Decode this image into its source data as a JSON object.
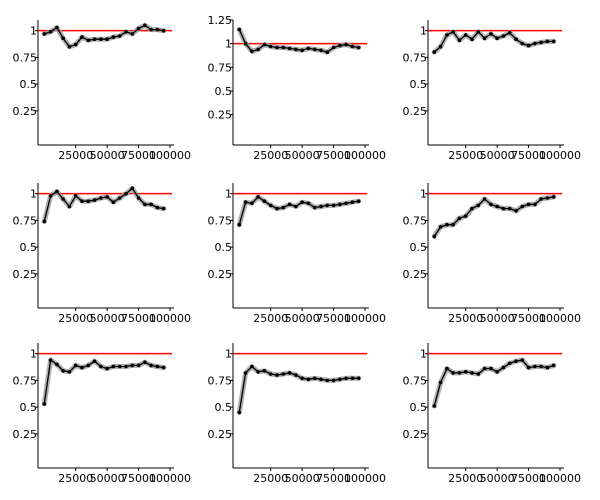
{
  "figure": {
    "reference_line_color": "#ff0000",
    "series_color": "#000000",
    "band_color": "#9a9a9a"
  },
  "chart_data": [
    {
      "type": "line",
      "y_tick_labels": [
        "1",
        "0.75",
        "0.5",
        "0.25"
      ],
      "y_ticks": [
        1,
        0.75,
        0.5,
        0.25
      ],
      "x_tick_labels": [
        "25000",
        "50000",
        "75000",
        "100000"
      ],
      "x_ticks": [
        25000,
        50000,
        75000,
        100000
      ],
      "xlim": [
        -5000,
        100000
      ],
      "ylim": [
        -0.07,
        1.1
      ],
      "reference_line": 1,
      "x": [
        0,
        5000,
        10000,
        15000,
        20000,
        25000,
        30000,
        35000,
        40000,
        45000,
        50000,
        55000,
        60000,
        65000,
        70000,
        75000,
        80000,
        85000,
        90000,
        95000
      ],
      "values": [
        0.97,
        0.99,
        1.03,
        0.93,
        0.85,
        0.87,
        0.94,
        0.91,
        0.92,
        0.92,
        0.92,
        0.94,
        0.95,
        0.99,
        0.97,
        1.02,
        1.05,
        1.01,
        1.01,
        1.0
      ]
    },
    {
      "type": "line",
      "y_tick_labels": [
        "1.25",
        "1",
        "0.75",
        "0.5",
        "0.25"
      ],
      "y_ticks": [
        1.25,
        1,
        0.75,
        0.5,
        0.25
      ],
      "x_tick_labels": [
        "25000",
        "50000",
        "75000",
        "100000"
      ],
      "x_ticks": [
        25000,
        50000,
        75000,
        100000
      ],
      "xlim": [
        -5000,
        100000
      ],
      "ylim": [
        -0.07,
        1.25
      ],
      "reference_line": 1,
      "x": [
        0,
        5000,
        10000,
        15000,
        20000,
        25000,
        30000,
        35000,
        40000,
        45000,
        50000,
        55000,
        60000,
        65000,
        70000,
        75000,
        80000,
        85000,
        90000,
        95000
      ],
      "values": [
        1.15,
        1.0,
        0.92,
        0.94,
        0.99,
        0.97,
        0.96,
        0.96,
        0.95,
        0.94,
        0.93,
        0.95,
        0.94,
        0.93,
        0.91,
        0.96,
        0.98,
        0.99,
        0.97,
        0.96
      ]
    },
    {
      "type": "line",
      "y_tick_labels": [
        "1",
        "0.75",
        "0.5",
        "0.25"
      ],
      "y_ticks": [
        1,
        0.75,
        0.5,
        0.25
      ],
      "x_tick_labels": [
        "25000",
        "50000",
        "75000",
        "100000"
      ],
      "x_ticks": [
        25000,
        50000,
        75000,
        100000
      ],
      "xlim": [
        -5000,
        100000
      ],
      "ylim": [
        -0.07,
        1.1
      ],
      "reference_line": 1,
      "x": [
        0,
        5000,
        10000,
        15000,
        20000,
        25000,
        30000,
        35000,
        40000,
        45000,
        50000,
        55000,
        60000,
        65000,
        70000,
        75000,
        80000,
        85000,
        90000,
        95000
      ],
      "values": [
        0.8,
        0.85,
        0.96,
        0.99,
        0.91,
        0.96,
        0.92,
        0.99,
        0.93,
        0.97,
        0.93,
        0.95,
        0.98,
        0.92,
        0.88,
        0.86,
        0.88,
        0.89,
        0.9,
        0.9
      ]
    },
    {
      "type": "line",
      "y_tick_labels": [
        "1",
        "0.75",
        "0.5",
        "0.25"
      ],
      "y_ticks": [
        1,
        0.75,
        0.5,
        0.25
      ],
      "x_tick_labels": [
        "25000",
        "50000",
        "75000",
        "100000"
      ],
      "x_ticks": [
        25000,
        50000,
        75000,
        100000
      ],
      "xlim": [
        -5000,
        100000
      ],
      "ylim": [
        -0.07,
        1.1
      ],
      "reference_line": 1,
      "x": [
        0,
        5000,
        10000,
        15000,
        20000,
        25000,
        30000,
        35000,
        40000,
        45000,
        50000,
        55000,
        60000,
        65000,
        70000,
        75000,
        80000,
        85000,
        90000,
        95000
      ],
      "values": [
        0.74,
        0.98,
        1.02,
        0.95,
        0.88,
        0.98,
        0.93,
        0.93,
        0.94,
        0.96,
        0.97,
        0.92,
        0.96,
        1.0,
        1.05,
        0.96,
        0.9,
        0.9,
        0.87,
        0.86
      ]
    },
    {
      "type": "line",
      "y_tick_labels": [
        "1",
        "0.75",
        "0.5",
        "0.25"
      ],
      "y_ticks": [
        1,
        0.75,
        0.5,
        0.25
      ],
      "x_tick_labels": [
        "25000",
        "50000",
        "75000",
        "100000"
      ],
      "x_ticks": [
        25000,
        50000,
        75000,
        100000
      ],
      "xlim": [
        -5000,
        100000
      ],
      "ylim": [
        -0.07,
        1.1
      ],
      "reference_line": 1,
      "x": [
        0,
        5000,
        10000,
        15000,
        20000,
        25000,
        30000,
        35000,
        40000,
        45000,
        50000,
        55000,
        60000,
        65000,
        70000,
        75000,
        80000,
        85000,
        90000,
        95000
      ],
      "values": [
        0.71,
        0.92,
        0.91,
        0.97,
        0.93,
        0.89,
        0.86,
        0.87,
        0.9,
        0.88,
        0.92,
        0.91,
        0.87,
        0.88,
        0.89,
        0.89,
        0.9,
        0.91,
        0.92,
        0.93
      ]
    },
    {
      "type": "line",
      "y_tick_labels": [
        "1",
        "0.75",
        "0.5",
        "0.25"
      ],
      "y_ticks": [
        1,
        0.75,
        0.5,
        0.25
      ],
      "x_tick_labels": [
        "25000",
        "50000",
        "75000",
        "100000"
      ],
      "x_ticks": [
        25000,
        50000,
        75000,
        100000
      ],
      "xlim": [
        -5000,
        100000
      ],
      "ylim": [
        -0.07,
        1.1
      ],
      "reference_line": 1,
      "x": [
        0,
        5000,
        10000,
        15000,
        20000,
        25000,
        30000,
        35000,
        40000,
        45000,
        50000,
        55000,
        60000,
        65000,
        70000,
        75000,
        80000,
        85000,
        90000,
        95000
      ],
      "values": [
        0.6,
        0.69,
        0.71,
        0.71,
        0.77,
        0.79,
        0.86,
        0.89,
        0.95,
        0.9,
        0.88,
        0.86,
        0.86,
        0.84,
        0.88,
        0.9,
        0.9,
        0.95,
        0.96,
        0.97
      ]
    },
    {
      "type": "line",
      "y_tick_labels": [
        "1",
        "0.75",
        "0.5",
        "0.25"
      ],
      "y_ticks": [
        1,
        0.75,
        0.5,
        0.25
      ],
      "x_tick_labels": [
        "25000",
        "50000",
        "75000",
        "100000"
      ],
      "x_ticks": [
        25000,
        50000,
        75000,
        100000
      ],
      "xlim": [
        -5000,
        100000
      ],
      "ylim": [
        -0.07,
        1.1
      ],
      "reference_line": 1,
      "x": [
        0,
        5000,
        10000,
        15000,
        20000,
        25000,
        30000,
        35000,
        40000,
        45000,
        50000,
        55000,
        60000,
        65000,
        70000,
        75000,
        80000,
        85000,
        90000,
        95000
      ],
      "values": [
        0.53,
        0.94,
        0.9,
        0.84,
        0.83,
        0.89,
        0.87,
        0.89,
        0.93,
        0.88,
        0.86,
        0.88,
        0.88,
        0.88,
        0.89,
        0.89,
        0.92,
        0.89,
        0.88,
        0.87
      ]
    },
    {
      "type": "line",
      "y_tick_labels": [
        "1",
        "0.75",
        "0.5",
        "0.25"
      ],
      "y_ticks": [
        1,
        0.75,
        0.5,
        0.25
      ],
      "x_tick_labels": [
        "25000",
        "50000",
        "75000",
        "100000"
      ],
      "x_ticks": [
        25000,
        50000,
        75000,
        100000
      ],
      "xlim": [
        -5000,
        100000
      ],
      "ylim": [
        -0.07,
        1.1
      ],
      "reference_line": 1,
      "x": [
        0,
        5000,
        10000,
        15000,
        20000,
        25000,
        30000,
        35000,
        40000,
        45000,
        50000,
        55000,
        60000,
        65000,
        70000,
        75000,
        80000,
        85000,
        90000,
        95000
      ],
      "values": [
        0.45,
        0.82,
        0.88,
        0.83,
        0.84,
        0.81,
        0.8,
        0.81,
        0.82,
        0.8,
        0.77,
        0.76,
        0.77,
        0.76,
        0.75,
        0.75,
        0.76,
        0.77,
        0.77,
        0.77
      ]
    },
    {
      "type": "line",
      "y_tick_labels": [
        "1",
        "0.75",
        "0.5",
        "0.25"
      ],
      "y_ticks": [
        1,
        0.75,
        0.5,
        0.25
      ],
      "x_tick_labels": [
        "25000",
        "50000",
        "75000",
        "100000"
      ],
      "x_ticks": [
        25000,
        50000,
        75000,
        100000
      ],
      "xlim": [
        -5000,
        100000
      ],
      "ylim": [
        -0.07,
        1.1
      ],
      "reference_line": 1,
      "x": [
        0,
        5000,
        10000,
        15000,
        20000,
        25000,
        30000,
        35000,
        40000,
        45000,
        50000,
        55000,
        60000,
        65000,
        70000,
        75000,
        80000,
        85000,
        90000,
        95000
      ],
      "values": [
        0.51,
        0.73,
        0.86,
        0.82,
        0.82,
        0.83,
        0.82,
        0.81,
        0.86,
        0.86,
        0.83,
        0.87,
        0.91,
        0.93,
        0.94,
        0.87,
        0.88,
        0.88,
        0.87,
        0.89
      ]
    }
  ]
}
